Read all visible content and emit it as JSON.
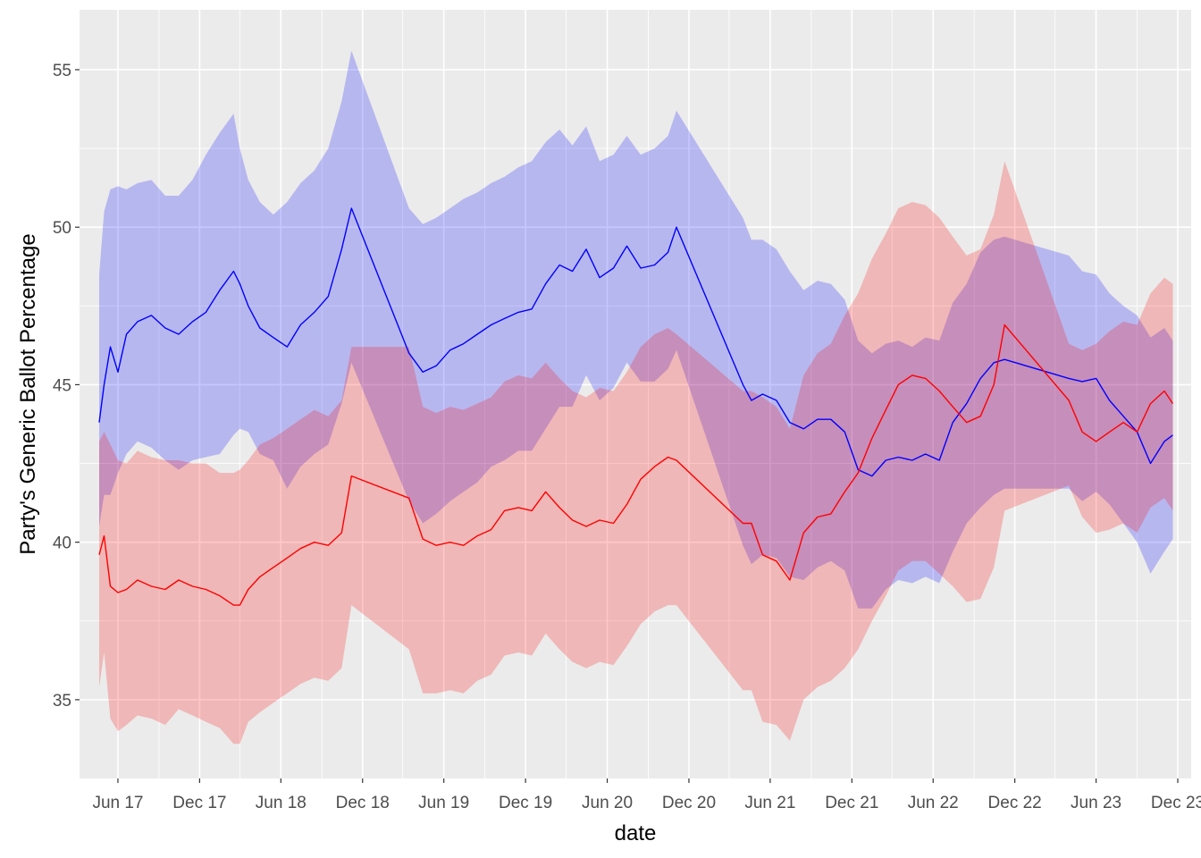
{
  "chart_data": {
    "type": "line",
    "title": "",
    "xlabel": "date",
    "ylabel": "Party's Generic Ballot Percentage",
    "x_ticks": [
      "Jun 17",
      "Dec 17",
      "Jun 18",
      "Dec 18",
      "Jun 19",
      "Dec 19",
      "Jun 20",
      "Dec 20",
      "Jun 21",
      "Dec 21",
      "Jun 22",
      "Dec 22",
      "Jun 23",
      "Dec 23"
    ],
    "y_ticks": [
      "35",
      "40",
      "45",
      "50",
      "55"
    ],
    "xlim": [
      "2017-03-07",
      "2023-12-31"
    ],
    "ylim": [
      32.5,
      56.9
    ],
    "grid": true,
    "legend": "none",
    "colors": {
      "panel": "#ebebeb",
      "grid": "#ffffff",
      "dem_line": "#0000ff",
      "dem_band": "#b9b9f0",
      "rep_line": "#ff0000",
      "rep_band": "#f0b9b9",
      "overlap_band": "#c996c8"
    },
    "series": [
      {
        "color": "#0000ff",
        "x": [
          "2017-04-20",
          "2017-05-01",
          "2017-05-15",
          "2017-06-01",
          "2017-06-20",
          "2017-07-15",
          "2017-08-15",
          "2017-09-15",
          "2017-10-15",
          "2017-11-15",
          "2017-12-15",
          "2018-01-15",
          "2018-02-15",
          "2018-03-01",
          "2018-03-20",
          "2018-04-15",
          "2018-05-15",
          "2018-06-15",
          "2018-07-15",
          "2018-08-15",
          "2018-09-15",
          "2018-10-15",
          "2018-11-06",
          "2019-03-15",
          "2019-04-15",
          "2019-05-15",
          "2019-06-15",
          "2019-07-15",
          "2019-08-15",
          "2019-09-15",
          "2019-10-15",
          "2019-11-15",
          "2019-12-15",
          "2020-01-15",
          "2020-02-15",
          "2020-03-15",
          "2020-04-15",
          "2020-05-15",
          "2020-06-15",
          "2020-07-15",
          "2020-08-15",
          "2020-09-15",
          "2020-10-15",
          "2020-11-03",
          "2021-04-01",
          "2021-04-20",
          "2021-05-15",
          "2021-06-15",
          "2021-07-15",
          "2021-08-15",
          "2021-09-15",
          "2021-10-15",
          "2021-11-15",
          "2021-12-15",
          "2022-01-15",
          "2022-02-15",
          "2022-03-15",
          "2022-04-15",
          "2022-05-15",
          "2022-06-15",
          "2022-07-15",
          "2022-08-15",
          "2022-09-15",
          "2022-10-15",
          "2022-11-08",
          "2023-04-01",
          "2023-05-01",
          "2023-06-01",
          "2023-07-01",
          "2023-08-01",
          "2023-09-01",
          "2023-10-01",
          "2023-11-01",
          "2023-11-20"
        ],
        "y": [
          43.8,
          45.0,
          46.2,
          45.4,
          46.6,
          47.0,
          47.2,
          46.8,
          46.6,
          47.0,
          47.3,
          48.0,
          48.6,
          48.2,
          47.5,
          46.8,
          46.5,
          46.2,
          46.9,
          47.3,
          47.8,
          49.3,
          50.6,
          46.0,
          45.4,
          45.6,
          46.1,
          46.3,
          46.6,
          46.9,
          47.1,
          47.3,
          47.4,
          48.2,
          48.8,
          48.6,
          49.3,
          48.4,
          48.7,
          49.4,
          48.7,
          48.8,
          49.2,
          50.0,
          45.0,
          44.5,
          44.7,
          44.5,
          43.8,
          43.6,
          43.9,
          43.9,
          43.5,
          42.3,
          42.1,
          42.6,
          42.7,
          42.6,
          42.8,
          42.6,
          43.8,
          44.4,
          45.2,
          45.7,
          45.8,
          45.2,
          45.1,
          45.2,
          44.5,
          44.0,
          43.5,
          42.5,
          43.2,
          43.4
        ],
        "band_upper": [
          48.5,
          50.5,
          51.2,
          51.3,
          51.2,
          51.4,
          51.5,
          51.0,
          51.0,
          51.5,
          52.3,
          53.0,
          53.6,
          52.5,
          51.5,
          50.8,
          50.4,
          50.8,
          51.4,
          51.8,
          52.5,
          54.0,
          55.6,
          50.6,
          50.1,
          50.3,
          50.6,
          50.9,
          51.1,
          51.4,
          51.6,
          51.9,
          52.1,
          52.7,
          53.1,
          52.6,
          53.2,
          52.1,
          52.3,
          52.9,
          52.3,
          52.5,
          52.9,
          53.7,
          50.3,
          49.6,
          49.6,
          49.3,
          48.6,
          48.0,
          48.3,
          48.2,
          47.7,
          46.4,
          46.0,
          46.3,
          46.4,
          46.2,
          46.5,
          46.4,
          47.6,
          48.2,
          49.2,
          49.6,
          49.7,
          49.1,
          48.6,
          48.5,
          47.9,
          47.5,
          47.2,
          46.5,
          46.8,
          46.4
        ],
        "band_lower": [
          40.5,
          41.5,
          41.5,
          42.2,
          42.8,
          43.2,
          43.0,
          42.6,
          42.3,
          42.6,
          42.7,
          42.8,
          43.4,
          43.6,
          43.5,
          42.8,
          42.6,
          41.7,
          42.4,
          42.8,
          43.1,
          44.4,
          45.7,
          41.3,
          40.6,
          40.9,
          41.3,
          41.6,
          41.9,
          42.4,
          42.6,
          42.9,
          42.9,
          43.6,
          44.3,
          44.3,
          45.3,
          44.5,
          44.9,
          45.7,
          45.1,
          45.1,
          45.5,
          46.1,
          39.9,
          39.3,
          39.6,
          39.5,
          38.9,
          38.8,
          39.2,
          39.4,
          39.1,
          37.9,
          37.9,
          38.5,
          38.8,
          38.7,
          38.9,
          38.7,
          39.7,
          40.6,
          41.1,
          41.5,
          41.7,
          41.7,
          41.3,
          41.6,
          41.2,
          40.6,
          40.0,
          39.0,
          39.7,
          40.1
        ]
      },
      {
        "color": "#ff0000",
        "x": [
          "2017-04-20",
          "2017-05-01",
          "2017-05-15",
          "2017-06-01",
          "2017-06-20",
          "2017-07-15",
          "2017-08-15",
          "2017-09-15",
          "2017-10-15",
          "2017-11-15",
          "2017-12-15",
          "2018-01-15",
          "2018-02-15",
          "2018-03-01",
          "2018-03-20",
          "2018-04-15",
          "2018-05-15",
          "2018-06-15",
          "2018-07-15",
          "2018-08-15",
          "2018-09-15",
          "2018-10-15",
          "2018-11-06",
          "2019-03-15",
          "2019-04-15",
          "2019-05-15",
          "2019-06-15",
          "2019-07-15",
          "2019-08-15",
          "2019-09-15",
          "2019-10-15",
          "2019-11-15",
          "2019-12-15",
          "2020-01-15",
          "2020-02-15",
          "2020-03-15",
          "2020-04-15",
          "2020-05-15",
          "2020-06-15",
          "2020-07-15",
          "2020-08-15",
          "2020-09-15",
          "2020-10-15",
          "2020-11-03",
          "2021-04-01",
          "2021-04-20",
          "2021-05-15",
          "2021-06-15",
          "2021-07-15",
          "2021-08-15",
          "2021-09-15",
          "2021-10-15",
          "2021-11-15",
          "2021-12-15",
          "2022-01-15",
          "2022-02-15",
          "2022-03-15",
          "2022-04-15",
          "2022-05-15",
          "2022-06-15",
          "2022-07-15",
          "2022-08-15",
          "2022-09-15",
          "2022-10-15",
          "2022-11-08",
          "2023-04-01",
          "2023-05-01",
          "2023-06-01",
          "2023-07-01",
          "2023-08-01",
          "2023-09-01",
          "2023-10-01",
          "2023-11-01",
          "2023-11-20"
        ],
        "y": [
          39.6,
          40.2,
          38.6,
          38.4,
          38.5,
          38.8,
          38.6,
          38.5,
          38.8,
          38.6,
          38.5,
          38.3,
          38.0,
          38.0,
          38.5,
          38.9,
          39.2,
          39.5,
          39.8,
          40.0,
          39.9,
          40.3,
          42.1,
          41.4,
          40.1,
          39.9,
          40.0,
          39.9,
          40.2,
          40.4,
          41.0,
          41.1,
          41.0,
          41.6,
          41.1,
          40.7,
          40.5,
          40.7,
          40.6,
          41.2,
          42.0,
          42.4,
          42.7,
          42.6,
          40.6,
          40.6,
          39.6,
          39.4,
          38.8,
          40.3,
          40.8,
          40.9,
          41.6,
          42.2,
          43.3,
          44.2,
          45.0,
          45.3,
          45.2,
          44.8,
          44.3,
          43.8,
          44.0,
          45.0,
          46.9,
          44.5,
          43.5,
          43.2,
          43.5,
          43.8,
          43.5,
          44.4,
          44.8,
          44.4
        ],
        "band_upper": [
          43.2,
          43.5,
          43.1,
          42.6,
          42.5,
          42.9,
          42.7,
          42.6,
          42.6,
          42.5,
          42.5,
          42.2,
          42.2,
          42.3,
          42.6,
          43.1,
          43.3,
          43.6,
          43.9,
          44.2,
          44.0,
          44.5,
          46.2,
          46.2,
          44.3,
          44.1,
          44.3,
          44.2,
          44.4,
          44.6,
          45.1,
          45.3,
          45.2,
          45.7,
          45.2,
          44.8,
          44.6,
          44.9,
          44.8,
          45.4,
          46.2,
          46.6,
          46.8,
          46.6,
          44.8,
          44.8,
          44.6,
          44.3,
          43.6,
          45.3,
          46.0,
          46.3,
          47.2,
          47.9,
          49.0,
          49.8,
          50.6,
          50.8,
          50.7,
          50.3,
          49.7,
          49.1,
          49.3,
          50.4,
          52.1,
          46.3,
          46.1,
          46.3,
          46.7,
          47.0,
          46.9,
          47.9,
          48.4,
          48.2
        ],
        "band_lower": [
          35.4,
          36.5,
          34.4,
          34.0,
          34.2,
          34.5,
          34.4,
          34.2,
          34.7,
          34.5,
          34.3,
          34.1,
          33.6,
          33.6,
          34.3,
          34.6,
          34.9,
          35.2,
          35.5,
          35.7,
          35.6,
          36.0,
          38.0,
          36.6,
          35.2,
          35.2,
          35.3,
          35.2,
          35.6,
          35.8,
          36.4,
          36.5,
          36.4,
          37.1,
          36.6,
          36.2,
          36.0,
          36.2,
          36.1,
          36.7,
          37.4,
          37.8,
          38.0,
          38.0,
          35.3,
          35.3,
          34.3,
          34.2,
          33.7,
          35.0,
          35.4,
          35.6,
          36.0,
          36.6,
          37.5,
          38.3,
          39.1,
          39.4,
          39.4,
          39.0,
          38.6,
          38.1,
          38.2,
          39.2,
          41.0,
          41.8,
          40.8,
          40.3,
          40.4,
          40.6,
          40.3,
          41.1,
          41.4,
          41.0
        ]
      }
    ]
  }
}
